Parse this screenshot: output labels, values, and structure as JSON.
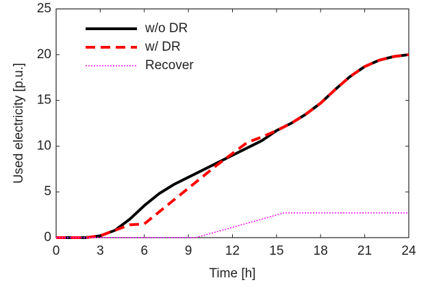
{
  "chart_data": {
    "type": "line",
    "xlabel": "Time [h]",
    "ylabel": "Used electricity [p.u.]",
    "xlim": [
      0,
      24
    ],
    "xticks": [
      0,
      3,
      6,
      9,
      12,
      15,
      18,
      21,
      24
    ],
    "ylim": [
      0,
      25
    ],
    "yticks": [
      0,
      5,
      10,
      15,
      20,
      25
    ],
    "legend": "upper left",
    "series": [
      {
        "name": "w/o DR",
        "color": "#000000",
        "style": "solid",
        "x": [
          0,
          1,
          2,
          3,
          4,
          5,
          6,
          7,
          8,
          9,
          10,
          11,
          12,
          13,
          14,
          15,
          16,
          17,
          18,
          19,
          20,
          21,
          22,
          23,
          24
        ],
        "values": [
          0,
          0,
          0,
          0.2,
          0.8,
          2.0,
          3.5,
          4.8,
          5.8,
          6.6,
          7.4,
          8.2,
          9.0,
          9.8,
          10.6,
          11.7,
          12.5,
          13.5,
          14.7,
          16.2,
          17.6,
          18.7,
          19.4,
          19.8,
          20
        ]
      },
      {
        "name": "w/ DR",
        "color": "#ff0000",
        "style": "dashed",
        "x": [
          0,
          1,
          2,
          3,
          4,
          5,
          6,
          7,
          8,
          9,
          10,
          11,
          12,
          13,
          14,
          15,
          16,
          17,
          18,
          19,
          20,
          21,
          22,
          23,
          24
        ],
        "values": [
          0,
          0,
          0,
          0.2,
          0.8,
          1.4,
          1.5,
          2.8,
          4.1,
          5.4,
          6.7,
          8.0,
          9.2,
          10.4,
          11.0,
          11.7,
          12.5,
          13.5,
          14.7,
          16.2,
          17.6,
          18.7,
          19.4,
          19.8,
          20
        ]
      },
      {
        "name": "Recover",
        "color": "#ff00ff",
        "style": "dotted",
        "x": [
          0,
          9.5,
          15.5,
          24
        ],
        "values": [
          0,
          0,
          2.7,
          2.7
        ]
      }
    ]
  }
}
